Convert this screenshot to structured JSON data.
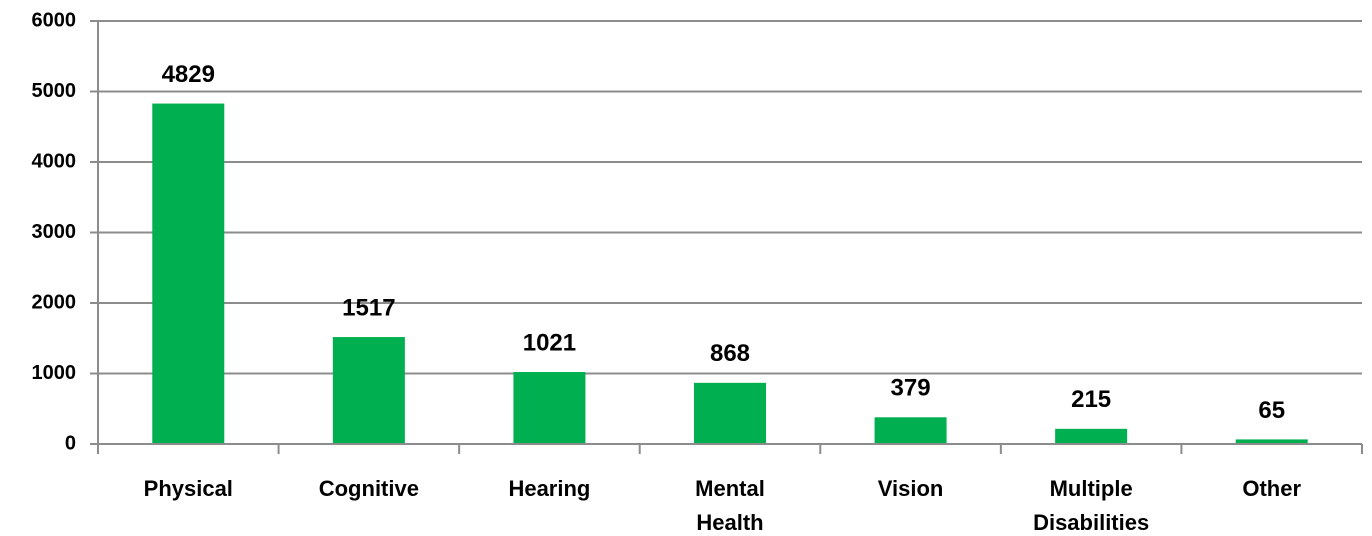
{
  "chart_data": {
    "type": "bar",
    "categories": [
      "Physical",
      "Cognitive",
      "Hearing",
      "Mental Health",
      "Vision",
      "Multiple Disabilities",
      "Other"
    ],
    "values": [
      4829,
      1517,
      1021,
      868,
      379,
      215,
      65
    ],
    "color": "#00b050",
    "ylim": [
      0,
      6000
    ],
    "yticks": [
      0,
      1000,
      2000,
      3000,
      4000,
      5000,
      6000
    ],
    "grid": true
  }
}
